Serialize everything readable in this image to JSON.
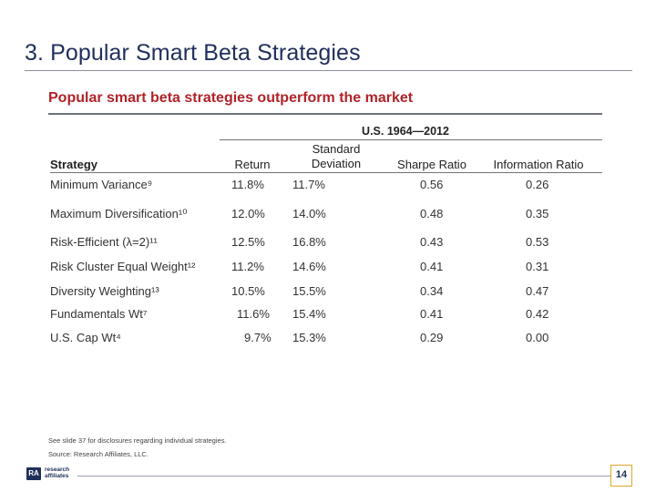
{
  "slide": {
    "title": "3. Popular Smart Beta Strategies",
    "subtitle": "Popular smart beta strategies outperform the market",
    "page_number": "14"
  },
  "table": {
    "period": "U.S. 1964—2012",
    "headers": {
      "strategy": "Strategy",
      "return": "Return",
      "std_line1": "Standard",
      "std_line2": "Deviation",
      "sharpe": "Sharpe Ratio",
      "info": "Information Ratio"
    },
    "rows": [
      {
        "name": "Minimum Variance⁹",
        "ret": "11.8%",
        "std": "11.7%",
        "sharpe": "0.56",
        "info": "0.26"
      },
      {
        "name": "Maximum Diversification¹⁰",
        "ret": "12.0%",
        "std": "14.0%",
        "sharpe": "0.48",
        "info": "0.35"
      },
      {
        "name": "Risk-Efficient (λ=2)¹¹",
        "ret": "12.5%",
        "std": "16.8%",
        "sharpe": "0.43",
        "info": "0.53"
      },
      {
        "name": "Risk Cluster Equal Weight¹²",
        "ret": "11.2%",
        "std": "14.6%",
        "sharpe": "0.41",
        "info": "0.31"
      },
      {
        "name": "Diversity Weighting¹³",
        "ret": "10.5%",
        "std": "15.5%",
        "sharpe": "0.34",
        "info": "0.47"
      },
      {
        "name": "Fundamentals Wt⁷",
        "ret": "11.6%",
        "std": "15.4%",
        "sharpe": "0.41",
        "info": "0.42"
      },
      {
        "name": "U.S. Cap Wt⁴",
        "ret": "9.7%",
        "std": "15.3%",
        "sharpe": "0.29",
        "info": "0.00"
      }
    ]
  },
  "footnotes": {
    "disclosure": "See slide 37 for disclosures regarding individual strategies.",
    "source": "Source: Research Affiliates, LLC."
  },
  "logo": {
    "mark": "RA",
    "line1": "research",
    "line2": "affiliates"
  }
}
